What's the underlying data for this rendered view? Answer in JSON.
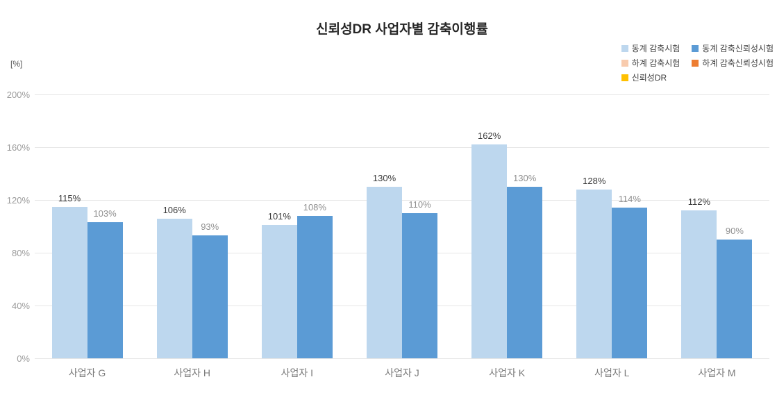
{
  "title": "신뢰성DR 사업자별 감축이행률",
  "y_axis": {
    "unit_label": "[%]",
    "ticks": [
      {
        "label": "0%",
        "value": 0
      },
      {
        "label": "40%",
        "value": 40
      },
      {
        "label": "80%",
        "value": 80
      },
      {
        "label": "120%",
        "value": 120
      },
      {
        "label": "160%",
        "value": 160
      },
      {
        "label": "200%",
        "value": 200
      }
    ]
  },
  "legend": [
    {
      "label": "동계 감축시험",
      "color": "#BDD7EE"
    },
    {
      "label": "동계 감축신뢰성시험",
      "color": "#5B9BD5"
    },
    {
      "label": "하계 감축시험",
      "color": "#F8CBAD"
    },
    {
      "label": "하계 감축신뢰성시험",
      "color": "#ED7D31"
    },
    {
      "label": "신뢰성DR",
      "color": "#FFC000"
    }
  ],
  "chart_data": {
    "type": "bar",
    "title": "신뢰성DR 사업자별 감축이행률",
    "categories": [
      "사업자 G",
      "사업자 H",
      "사업자 I",
      "사업자 J",
      "사업자 K",
      "사업자 L",
      "사업자 M"
    ],
    "series": [
      {
        "name": "동계 감축시험",
        "color": "#BDD7EE",
        "label_color": "#3a3a3a",
        "values": [
          115,
          106,
          101,
          130,
          162,
          128,
          112
        ]
      },
      {
        "name": "동계 감축신뢰성시험",
        "color": "#5B9BD5",
        "label_color": "#8f8f8f",
        "values": [
          103,
          93,
          108,
          110,
          130,
          114,
          90
        ]
      }
    ],
    "unplotted_legend_series": [
      "하계 감축시험",
      "하계 감축신뢰성시험",
      "신뢰성DR"
    ],
    "xlabel": "",
    "ylabel": "[%]",
    "ylim": [
      0,
      200
    ],
    "ytick_step": 40,
    "grid": true,
    "legend_position": "top-right",
    "value_suffix": "%"
  }
}
